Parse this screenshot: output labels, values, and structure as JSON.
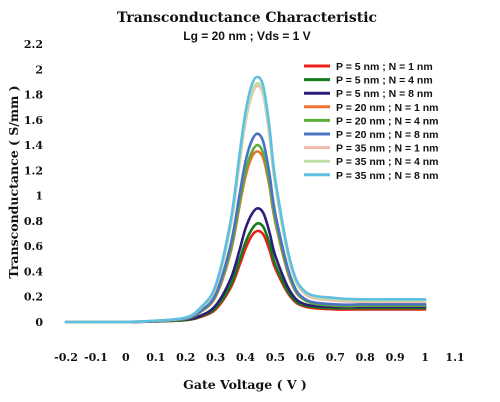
{
  "chart_data": {
    "type": "line",
    "title": "Transconductance Characteristic",
    "subtitle": "Lg = 20 nm ; Vds = 1 V",
    "xlabel": "Gate Voltage ( V )",
    "ylabel": "Transconductance ( S/mm )",
    "xlim": [
      -0.2,
      1.1
    ],
    "ylim": [
      0,
      2.2
    ],
    "xticks": [
      "-0.2",
      "-0.1",
      "0",
      "0.1",
      "0.2",
      "0.3",
      "0.4",
      "0.5",
      "0.6",
      "0.7",
      "0.8",
      "0.9",
      "1",
      "1.1"
    ],
    "yticks": [
      "0",
      "0.2",
      "0.4",
      "0.6",
      "0.8",
      "1",
      "1.2",
      "1.4",
      "1.6",
      "1.8",
      "2",
      "2.2"
    ],
    "grid": false,
    "legend_position": "top-right",
    "x": [
      -0.2,
      -0.1,
      0,
      0.1,
      0.2,
      0.25,
      0.3,
      0.35,
      0.38,
      0.4,
      0.42,
      0.44,
      0.46,
      0.48,
      0.5,
      0.55,
      0.6,
      0.7,
      0.8,
      0.9,
      1.0
    ],
    "series": [
      {
        "name": "P = 5 nm ; N = 1 nm",
        "color": "#e8211b",
        "values": [
          0,
          0,
          0,
          0.005,
          0.015,
          0.04,
          0.1,
          0.27,
          0.45,
          0.58,
          0.68,
          0.72,
          0.69,
          0.57,
          0.42,
          0.2,
          0.12,
          0.1,
          0.1,
          0.1,
          0.1
        ]
      },
      {
        "name": "P = 5 nm ; N = 4 nm",
        "color": "#177a1a",
        "values": [
          0,
          0,
          0,
          0.005,
          0.015,
          0.045,
          0.11,
          0.29,
          0.49,
          0.63,
          0.73,
          0.78,
          0.75,
          0.62,
          0.45,
          0.21,
          0.13,
          0.11,
          0.11,
          0.11,
          0.11
        ]
      },
      {
        "name": "P = 5 nm ; N = 8 nm",
        "color": "#2b1d7a",
        "values": [
          0,
          0,
          0,
          0.006,
          0.02,
          0.05,
          0.13,
          0.34,
          0.57,
          0.74,
          0.85,
          0.9,
          0.86,
          0.71,
          0.52,
          0.24,
          0.14,
          0.12,
          0.12,
          0.12,
          0.12
        ]
      },
      {
        "name": "P = 20 nm ; N = 1 nm",
        "color": "#f07030",
        "values": [
          0,
          0,
          0,
          0.008,
          0.025,
          0.08,
          0.2,
          0.55,
          0.92,
          1.15,
          1.3,
          1.35,
          1.29,
          1.07,
          0.78,
          0.33,
          0.17,
          0.13,
          0.13,
          0.13,
          0.13
        ]
      },
      {
        "name": "P = 20 nm ; N = 4 nm",
        "color": "#5cae3a",
        "values": [
          0,
          0,
          0,
          0.008,
          0.026,
          0.083,
          0.21,
          0.57,
          0.95,
          1.19,
          1.34,
          1.4,
          1.33,
          1.1,
          0.8,
          0.34,
          0.17,
          0.13,
          0.13,
          0.13,
          0.13
        ]
      },
      {
        "name": "P = 20 nm ; N = 8 nm",
        "color": "#4a72c4",
        "values": [
          0,
          0,
          0,
          0.009,
          0.028,
          0.088,
          0.22,
          0.61,
          1.01,
          1.27,
          1.43,
          1.49,
          1.42,
          1.17,
          0.85,
          0.36,
          0.18,
          0.14,
          0.14,
          0.14,
          0.14
        ]
      },
      {
        "name": "P = 35 nm ; N = 1 nm",
        "color": "#f2b8a8",
        "values": [
          0,
          0,
          0,
          0.01,
          0.034,
          0.11,
          0.27,
          0.76,
          1.26,
          1.58,
          1.79,
          1.87,
          1.79,
          1.47,
          1.07,
          0.45,
          0.22,
          0.17,
          0.16,
          0.16,
          0.16
        ]
      },
      {
        "name": "P = 35 nm ; N = 4 nm",
        "color": "#bfe0a6",
        "values": [
          0,
          0,
          0,
          0.01,
          0.035,
          0.11,
          0.28,
          0.77,
          1.28,
          1.6,
          1.81,
          1.89,
          1.81,
          1.49,
          1.08,
          0.46,
          0.23,
          0.18,
          0.17,
          0.17,
          0.17
        ]
      },
      {
        "name": "P = 35 nm ; N = 8 nm",
        "color": "#5fbfe0",
        "values": [
          0,
          0,
          0,
          0.01,
          0.036,
          0.115,
          0.29,
          0.8,
          1.33,
          1.66,
          1.87,
          1.94,
          1.86,
          1.54,
          1.12,
          0.48,
          0.24,
          0.19,
          0.18,
          0.18,
          0.18
        ]
      }
    ]
  }
}
